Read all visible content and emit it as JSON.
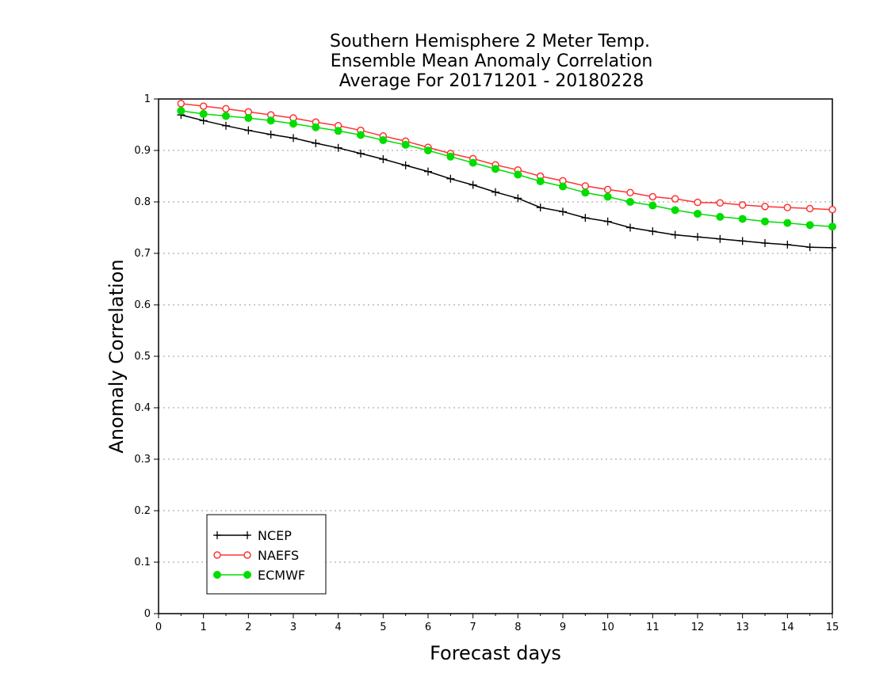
{
  "chart_data": {
    "type": "line",
    "title": [
      "Southern Hemisphere 2 Meter Temp.",
      "Ensemble Mean Anomaly Correlation",
      "Average For 20171201 - 20180228"
    ],
    "xlabel": "Forecast days",
    "ylabel": "Anomaly Correlation",
    "xlim": [
      0,
      15
    ],
    "ylim": [
      0,
      1
    ],
    "xticks": [
      "0",
      "1",
      "2",
      "3",
      "4",
      "5",
      "6",
      "7",
      "8",
      "9",
      "10",
      "11",
      "12",
      "13",
      "14",
      "15"
    ],
    "yticks": [
      "0",
      "0.1",
      "0.2",
      "0.3",
      "0.4",
      "0.5",
      "0.6",
      "0.7",
      "0.8",
      "0.9",
      "1"
    ],
    "grid": "horizontal-dotted",
    "legend_position": "bottom-left",
    "x": [
      0.5,
      1,
      1.5,
      2,
      2.5,
      3,
      3.5,
      4,
      4.5,
      5,
      5.5,
      6,
      6.5,
      7,
      7.5,
      8,
      8.5,
      9,
      9.5,
      10,
      10.5,
      11,
      11.5,
      12,
      12.5,
      13,
      13.5,
      14,
      14.5,
      15
    ],
    "series": [
      {
        "name": "NCEP",
        "color": "#000000",
        "marker": "plus",
        "values": [
          0.969,
          0.958,
          0.948,
          0.939,
          0.931,
          0.924,
          0.914,
          0.905,
          0.894,
          0.883,
          0.871,
          0.859,
          0.845,
          0.833,
          0.819,
          0.807,
          0.789,
          0.781,
          0.769,
          0.762,
          0.75,
          0.743,
          0.736,
          0.732,
          0.728,
          0.724,
          0.72,
          0.717,
          0.712,
          0.711
        ]
      },
      {
        "name": "NAEFS",
        "color": "#ff3333",
        "marker": "open-circle",
        "values": [
          0.991,
          0.986,
          0.981,
          0.975,
          0.969,
          0.963,
          0.955,
          0.948,
          0.939,
          0.928,
          0.918,
          0.906,
          0.894,
          0.884,
          0.872,
          0.862,
          0.85,
          0.841,
          0.831,
          0.824,
          0.818,
          0.81,
          0.806,
          0.799,
          0.798,
          0.794,
          0.791,
          0.789,
          0.787,
          0.785
        ]
      },
      {
        "name": "ECMWF",
        "color": "#00dd00",
        "marker": "filled-circle",
        "values": [
          0.977,
          0.971,
          0.967,
          0.963,
          0.958,
          0.952,
          0.945,
          0.938,
          0.93,
          0.92,
          0.911,
          0.9,
          0.888,
          0.876,
          0.864,
          0.853,
          0.84,
          0.83,
          0.818,
          0.81,
          0.8,
          0.793,
          0.784,
          0.777,
          0.771,
          0.767,
          0.762,
          0.759,
          0.755,
          0.752
        ]
      }
    ]
  }
}
